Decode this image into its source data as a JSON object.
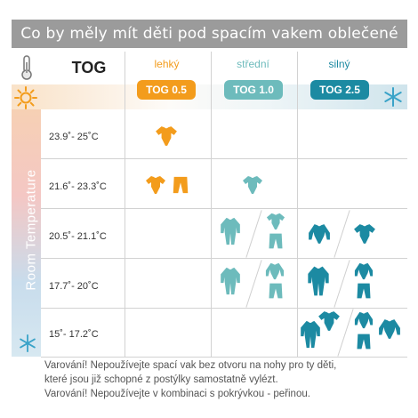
{
  "title": "Co by měly mít děti pod spacím vakem oblečené",
  "header": {
    "tog_label": "TOG",
    "columns": [
      {
        "label": "lehký",
        "tog": "TOG 0.5",
        "color": "#f39c1c"
      },
      {
        "label": "střední",
        "tog": "TOG 1.0",
        "color": "#6dbbbc"
      },
      {
        "label": "silný",
        "tog": "TOG 2.5",
        "color": "#1c8aa2"
      }
    ]
  },
  "side_label": "Room Temperature",
  "rows": [
    {
      "temp": "23.9˚- 25˚C"
    },
    {
      "temp": "21.6˚- 23.3˚C"
    },
    {
      "temp": "20.5˚- 21.1˚C"
    },
    {
      "temp": "17.7˚- 20˚C"
    },
    {
      "temp": "15˚- 17.2˚C"
    }
  ],
  "warnings": [
    "Varování! Nepoužívejte spací vak bez otvoru na nohy pro ty děti,",
    "které jsou již schopné z postýlky samostatně vylézt.",
    "Varování! Nepoužívejte v kombinaci s pokrývkou - peřinou."
  ],
  "icons": {
    "sun": "sun-icon",
    "snow": "snowflake-icon",
    "thermometer": "thermometer-icon"
  },
  "colors": {
    "orange": "#f39c1c",
    "teal_light": "#6dbbbc",
    "teal_dark": "#1c8aa2",
    "title_bg": "#9b9b9b"
  }
}
